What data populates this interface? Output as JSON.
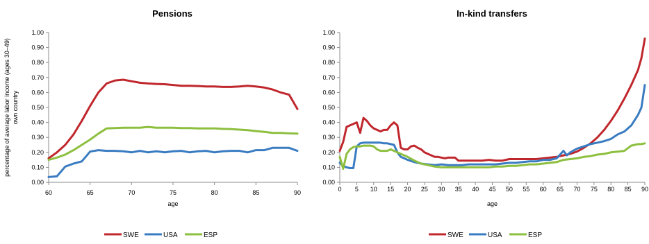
{
  "chart_data": [
    {
      "type": "line",
      "title": "Pensions",
      "xlabel": "age",
      "ylabel_line1": "percentage of average labor income (ages 30–49)",
      "ylabel_line2": "own country",
      "xlim": [
        60,
        90
      ],
      "ylim": [
        0,
        1.0
      ],
      "xticks": [
        60,
        65,
        70,
        75,
        80,
        85,
        90
      ],
      "yticks": [
        "0.00",
        "0.10",
        "0.20",
        "0.30",
        "0.40",
        "0.50",
        "0.60",
        "0.70",
        "0.80",
        "0.90",
        "1.00"
      ],
      "grid": false,
      "legend": "bottom",
      "series": [
        {
          "name": "SWE",
          "color": "#c0272d",
          "x": [
            60,
            61,
            62,
            63,
            64,
            65,
            66,
            67,
            68,
            69,
            70,
            71,
            72,
            73,
            74,
            75,
            76,
            77,
            78,
            79,
            80,
            81,
            82,
            83,
            84,
            85,
            86,
            87,
            88,
            89,
            90
          ],
          "y": [
            0.16,
            0.2,
            0.25,
            0.32,
            0.41,
            0.51,
            0.6,
            0.66,
            0.68,
            0.685,
            0.675,
            0.665,
            0.66,
            0.657,
            0.655,
            0.65,
            0.645,
            0.645,
            0.643,
            0.64,
            0.64,
            0.637,
            0.637,
            0.64,
            0.645,
            0.64,
            0.633,
            0.62,
            0.6,
            0.585,
            0.49
          ]
        },
        {
          "name": "USA",
          "color": "#3a7cc1",
          "x": [
            60,
            61,
            62,
            63,
            64,
            65,
            66,
            67,
            68,
            69,
            70,
            71,
            72,
            73,
            74,
            75,
            76,
            77,
            78,
            79,
            80,
            81,
            82,
            83,
            84,
            85,
            86,
            87,
            88,
            89,
            90
          ],
          "y": [
            0.035,
            0.04,
            0.105,
            0.125,
            0.14,
            0.205,
            0.215,
            0.21,
            0.21,
            0.207,
            0.2,
            0.21,
            0.2,
            0.207,
            0.2,
            0.207,
            0.21,
            0.2,
            0.207,
            0.21,
            0.2,
            0.207,
            0.21,
            0.21,
            0.2,
            0.215,
            0.215,
            0.23,
            0.23,
            0.23,
            0.21
          ]
        },
        {
          "name": "ESP",
          "color": "#8dbf3f",
          "x": [
            60,
            61,
            62,
            63,
            64,
            65,
            66,
            67,
            68,
            69,
            70,
            71,
            72,
            73,
            74,
            75,
            76,
            77,
            78,
            79,
            80,
            81,
            82,
            83,
            84,
            85,
            86,
            87,
            88,
            89,
            90
          ],
          "y": [
            0.15,
            0.165,
            0.185,
            0.215,
            0.25,
            0.285,
            0.325,
            0.36,
            0.362,
            0.365,
            0.365,
            0.365,
            0.37,
            0.365,
            0.365,
            0.365,
            0.362,
            0.362,
            0.36,
            0.36,
            0.36,
            0.357,
            0.355,
            0.352,
            0.348,
            0.342,
            0.337,
            0.33,
            0.33,
            0.327,
            0.325
          ]
        }
      ]
    },
    {
      "type": "line",
      "title": "In-kind transfers",
      "xlabel": "age",
      "xlim": [
        0,
        90
      ],
      "ylim": [
        0,
        1.0
      ],
      "xticks": [
        0,
        5,
        10,
        15,
        20,
        25,
        30,
        35,
        40,
        45,
        50,
        55,
        60,
        65,
        70,
        75,
        80,
        85,
        90
      ],
      "yticks": [
        "0.00",
        "0.10",
        "0.20",
        "0.30",
        "0.40",
        "0.50",
        "0.60",
        "0.70",
        "0.80",
        "0.90",
        "1.00"
      ],
      "grid": false,
      "legend": "bottom",
      "series": [
        {
          "name": "SWE",
          "color": "#c0272d",
          "x": [
            0,
            1,
            2,
            3,
            4,
            5,
            6,
            7,
            8,
            9,
            10,
            11,
            12,
            13,
            14,
            15,
            16,
            17,
            18,
            19,
            20,
            21,
            22,
            23,
            24,
            25,
            26,
            27,
            28,
            29,
            30,
            31,
            32,
            33,
            34,
            35,
            36,
            37,
            38,
            39,
            40,
            42,
            44,
            46,
            48,
            50,
            52,
            54,
            56,
            58,
            60,
            62,
            64,
            66,
            68,
            70,
            72,
            74,
            76,
            78,
            80,
            82,
            84,
            86,
            88,
            89,
            90
          ],
          "y": [
            0.21,
            0.27,
            0.37,
            0.38,
            0.39,
            0.4,
            0.33,
            0.43,
            0.41,
            0.38,
            0.36,
            0.35,
            0.34,
            0.35,
            0.35,
            0.38,
            0.4,
            0.38,
            0.23,
            0.22,
            0.22,
            0.24,
            0.245,
            0.23,
            0.22,
            0.2,
            0.19,
            0.18,
            0.17,
            0.17,
            0.165,
            0.16,
            0.165,
            0.165,
            0.165,
            0.145,
            0.145,
            0.145,
            0.145,
            0.145,
            0.145,
            0.145,
            0.15,
            0.145,
            0.145,
            0.155,
            0.155,
            0.155,
            0.155,
            0.155,
            0.16,
            0.165,
            0.17,
            0.18,
            0.19,
            0.205,
            0.23,
            0.26,
            0.3,
            0.35,
            0.41,
            0.48,
            0.56,
            0.65,
            0.75,
            0.83,
            0.96
          ]
        },
        {
          "name": "USA",
          "color": "#3a7cc1",
          "x": [
            0,
            1,
            2,
            3,
            4,
            5,
            6,
            7,
            8,
            9,
            10,
            11,
            12,
            13,
            14,
            15,
            16,
            17,
            18,
            19,
            20,
            22,
            24,
            26,
            28,
            30,
            32,
            34,
            36,
            38,
            40,
            42,
            44,
            46,
            48,
            50,
            52,
            54,
            56,
            58,
            60,
            62,
            64,
            66,
            67,
            68,
            70,
            72,
            74,
            76,
            78,
            80,
            82,
            84,
            86,
            88,
            89,
            90
          ],
          "y": [
            0.13,
            0.11,
            0.1,
            0.095,
            0.095,
            0.24,
            0.26,
            0.265,
            0.265,
            0.265,
            0.265,
            0.265,
            0.265,
            0.26,
            0.26,
            0.255,
            0.25,
            0.2,
            0.17,
            0.16,
            0.15,
            0.135,
            0.125,
            0.12,
            0.115,
            0.12,
            0.115,
            0.115,
            0.115,
            0.12,
            0.12,
            0.12,
            0.12,
            0.12,
            0.125,
            0.13,
            0.13,
            0.135,
            0.14,
            0.14,
            0.15,
            0.15,
            0.16,
            0.21,
            0.18,
            0.2,
            0.225,
            0.24,
            0.255,
            0.265,
            0.275,
            0.29,
            0.32,
            0.34,
            0.38,
            0.45,
            0.5,
            0.65
          ]
        },
        {
          "name": "ESP",
          "color": "#8dbf3f",
          "x": [
            0,
            1,
            2,
            3,
            4,
            5,
            6,
            7,
            8,
            9,
            10,
            11,
            12,
            13,
            14,
            15,
            16,
            17,
            18,
            19,
            20,
            22,
            24,
            26,
            28,
            30,
            32,
            34,
            36,
            38,
            40,
            42,
            44,
            46,
            48,
            50,
            52,
            54,
            56,
            58,
            60,
            62,
            64,
            66,
            68,
            70,
            72,
            74,
            76,
            78,
            80,
            82,
            84,
            86,
            88,
            89,
            90
          ],
          "y": [
            0.17,
            0.09,
            0.19,
            0.22,
            0.235,
            0.24,
            0.24,
            0.245,
            0.245,
            0.245,
            0.24,
            0.22,
            0.21,
            0.21,
            0.21,
            0.22,
            0.21,
            0.2,
            0.19,
            0.18,
            0.17,
            0.145,
            0.125,
            0.115,
            0.105,
            0.1,
            0.1,
            0.1,
            0.1,
            0.1,
            0.1,
            0.1,
            0.1,
            0.105,
            0.105,
            0.11,
            0.11,
            0.115,
            0.12,
            0.12,
            0.125,
            0.13,
            0.135,
            0.15,
            0.155,
            0.16,
            0.17,
            0.175,
            0.185,
            0.19,
            0.2,
            0.205,
            0.21,
            0.245,
            0.255,
            0.255,
            0.26
          ]
        }
      ]
    }
  ]
}
